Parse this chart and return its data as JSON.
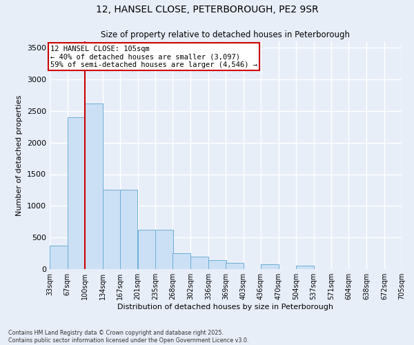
{
  "title_line1": "12, HANSEL CLOSE, PETERBOROUGH, PE2 9SR",
  "title_line2": "Size of property relative to detached houses in Peterborough",
  "xlabel": "Distribution of detached houses by size in Peterborough",
  "ylabel": "Number of detached properties",
  "footnote_line1": "Contains HM Land Registry data © Crown copyright and database right 2025.",
  "footnote_line2": "Contains public sector information licensed under the Open Government Licence v3.0.",
  "annotation_line1": "12 HANSEL CLOSE: 105sqm",
  "annotation_line2": "← 40% of detached houses are smaller (3,097)",
  "annotation_line3": "59% of semi-detached houses are larger (4,546) →",
  "bin_edges": [
    33,
    67,
    100,
    134,
    167,
    201,
    235,
    268,
    302,
    336,
    369,
    403,
    436,
    470,
    504,
    537,
    571,
    604,
    638,
    672,
    705
  ],
  "bin_labels": [
    "33sqm",
    "67sqm",
    "100sqm",
    "134sqm",
    "167sqm",
    "201sqm",
    "235sqm",
    "268sqm",
    "302sqm",
    "336sqm",
    "369sqm",
    "403sqm",
    "436sqm",
    "470sqm",
    "504sqm",
    "537sqm",
    "571sqm",
    "604sqm",
    "638sqm",
    "672sqm",
    "705sqm"
  ],
  "bar_values": [
    370,
    2400,
    2620,
    1250,
    1250,
    620,
    620,
    250,
    200,
    145,
    100,
    0,
    80,
    0,
    60,
    0,
    0,
    0,
    0,
    0,
    15
  ],
  "bar_color": "#cce0f5",
  "bar_edge_color": "#6aaed6",
  "vline_color": "#cc0000",
  "vline_x": 100,
  "ylim": [
    0,
    3600
  ],
  "yticks": [
    0,
    500,
    1000,
    1500,
    2000,
    2500,
    3000,
    3500
  ],
  "background_color": "#e8eef8",
  "grid_color": "#ffffff",
  "annotation_box_color": "#ffffff",
  "annotation_box_edge": "#cc0000"
}
